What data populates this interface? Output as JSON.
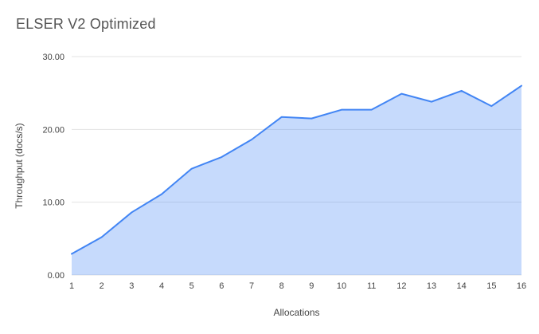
{
  "chart_data": {
    "type": "area",
    "title": "ELSER V2 Optimized",
    "xlabel": "Allocations",
    "ylabel": "Throughput (docs/s)",
    "x": [
      1,
      2,
      3,
      4,
      5,
      6,
      7,
      8,
      9,
      10,
      11,
      12,
      13,
      14,
      15,
      16
    ],
    "values": [
      2.9,
      5.2,
      8.6,
      11.1,
      14.6,
      16.2,
      18.6,
      21.7,
      21.5,
      22.7,
      22.7,
      24.9,
      23.8,
      25.3,
      23.2,
      26.0
    ],
    "ylim": [
      0,
      30
    ],
    "yticks": [
      0,
      10,
      20,
      30
    ],
    "ytick_labels": [
      "0.00",
      "10.00",
      "20.00",
      "30.00"
    ],
    "xtick_labels": [
      "1",
      "2",
      "3",
      "4",
      "5",
      "6",
      "7",
      "8",
      "9",
      "10",
      "11",
      "12",
      "13",
      "14",
      "15",
      "16"
    ],
    "grid": true,
    "legend": "none",
    "colors": {
      "line": "#4285f4",
      "fill": "#4285f4",
      "fill_opacity": 0.3,
      "grid": "#e3e3e3",
      "axis_text": "#444444",
      "title": "#555555",
      "background": "#ffffff"
    }
  }
}
